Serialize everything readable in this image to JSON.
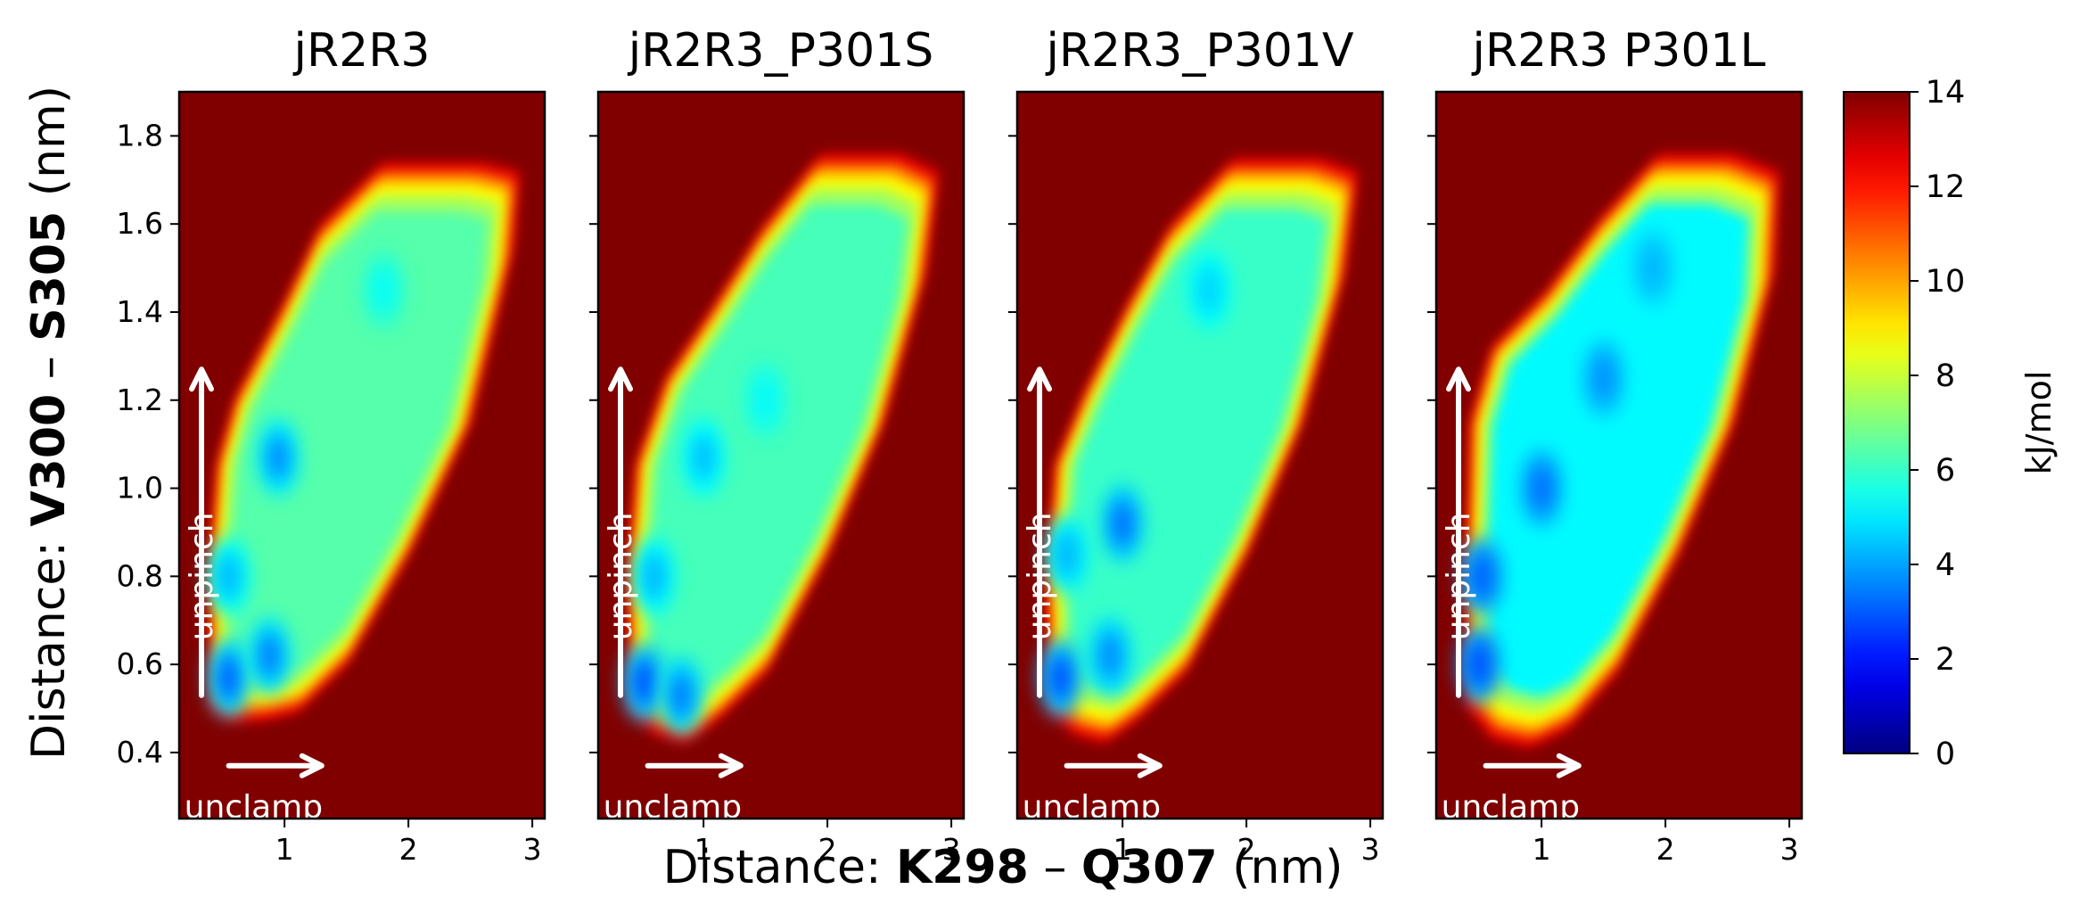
{
  "figure": {
    "xlabel_prefix": "Distance: ",
    "xlabel_res1": "K298",
    "xlabel_sep": " – ",
    "xlabel_res2": "Q307",
    "xlabel_suffix": " (nm)",
    "ylabel_prefix": "Distance: ",
    "ylabel_res1": "V300",
    "ylabel_sep": " – ",
    "ylabel_res2": "S305",
    "ylabel_suffix": " (nm)",
    "colorbar_label": "kJ/mol",
    "arrow_x_label": "unclamp",
    "arrow_y_label": "unpinch"
  },
  "chart_data": {
    "type": "heatmap",
    "xlim": [
      0.15,
      3.1
    ],
    "ylim": [
      0.25,
      1.9
    ],
    "x_ticks": [
      1,
      2,
      3
    ],
    "y_ticks": [
      0.4,
      0.6,
      0.8,
      1.0,
      1.2,
      1.4,
      1.6,
      1.8
    ],
    "y_tick_labels": [
      "0.4",
      "0.6",
      "0.8",
      "1.0",
      "1.2",
      "1.4",
      "1.6",
      "1.8"
    ],
    "colorbar": {
      "min": 0,
      "max": 14,
      "ticks": [
        0,
        2,
        4,
        6,
        8,
        10,
        12,
        14
      ],
      "colormap": "jet"
    },
    "max_color": "#800000",
    "panels": [
      {
        "title": "jR2R3",
        "boundary": [
          [
            0.4,
            0.5
          ],
          [
            0.55,
            0.47
          ],
          [
            0.8,
            0.47
          ],
          [
            1.1,
            0.49
          ],
          [
            1.5,
            0.6
          ],
          [
            2.0,
            0.85
          ],
          [
            2.5,
            1.15
          ],
          [
            2.85,
            1.55
          ],
          [
            2.9,
            1.72
          ],
          [
            2.6,
            1.74
          ],
          [
            1.8,
            1.74
          ],
          [
            1.3,
            1.6
          ],
          [
            1.0,
            1.42
          ],
          [
            0.6,
            1.2
          ],
          [
            0.45,
            1.05
          ],
          [
            0.38,
            0.8
          ]
        ],
        "base_energy": 6.4,
        "minima": [
          [
            0.55,
            0.57,
            3.0
          ],
          [
            0.88,
            0.62,
            3.4
          ],
          [
            0.95,
            1.07,
            3.6
          ],
          [
            0.55,
            0.8,
            4.2
          ],
          [
            1.8,
            1.45,
            5.3
          ]
        ]
      },
      {
        "title": "jR2R3_P301S",
        "boundary": [
          [
            0.4,
            0.5
          ],
          [
            0.6,
            0.44
          ],
          [
            0.85,
            0.42
          ],
          [
            1.1,
            0.47
          ],
          [
            1.5,
            0.58
          ],
          [
            2.0,
            0.85
          ],
          [
            2.45,
            1.15
          ],
          [
            2.8,
            1.5
          ],
          [
            2.9,
            1.72
          ],
          [
            2.6,
            1.76
          ],
          [
            1.95,
            1.76
          ],
          [
            1.5,
            1.6
          ],
          [
            1.1,
            1.42
          ],
          [
            0.7,
            1.25
          ],
          [
            0.45,
            1.05
          ],
          [
            0.38,
            0.8
          ]
        ],
        "base_energy": 6.2,
        "minima": [
          [
            0.52,
            0.56,
            2.8
          ],
          [
            0.82,
            0.53,
            3.4
          ],
          [
            1.0,
            1.07,
            4.3
          ],
          [
            0.6,
            0.8,
            4.2
          ],
          [
            1.5,
            1.2,
            5.2
          ]
        ]
      },
      {
        "title": "jR2R3_P301V",
        "boundary": [
          [
            0.4,
            0.5
          ],
          [
            0.6,
            0.44
          ],
          [
            0.85,
            0.42
          ],
          [
            1.1,
            0.47
          ],
          [
            1.5,
            0.58
          ],
          [
            2.0,
            0.85
          ],
          [
            2.45,
            1.15
          ],
          [
            2.8,
            1.5
          ],
          [
            2.9,
            1.72
          ],
          [
            2.6,
            1.75
          ],
          [
            1.9,
            1.75
          ],
          [
            1.4,
            1.6
          ],
          [
            1.05,
            1.42
          ],
          [
            0.7,
            1.22
          ],
          [
            0.45,
            1.05
          ],
          [
            0.38,
            0.8
          ]
        ],
        "base_energy": 6.0,
        "minima": [
          [
            0.5,
            0.57,
            2.8
          ],
          [
            0.9,
            0.62,
            3.6
          ],
          [
            1.0,
            0.92,
            3.2
          ],
          [
            0.55,
            0.85,
            4.2
          ],
          [
            1.7,
            1.45,
            4.6
          ]
        ]
      },
      {
        "title": "jR2R3 P301L",
        "boundary": [
          [
            0.4,
            0.5
          ],
          [
            0.6,
            0.43
          ],
          [
            0.9,
            0.41
          ],
          [
            1.2,
            0.45
          ],
          [
            1.6,
            0.58
          ],
          [
            2.1,
            0.85
          ],
          [
            2.55,
            1.15
          ],
          [
            2.88,
            1.5
          ],
          [
            2.92,
            1.72
          ],
          [
            2.55,
            1.76
          ],
          [
            1.95,
            1.76
          ],
          [
            1.5,
            1.62
          ],
          [
            1.05,
            1.45
          ],
          [
            0.6,
            1.32
          ],
          [
            0.42,
            1.15
          ],
          [
            0.38,
            0.8
          ]
        ],
        "base_energy": 5.2,
        "minima": [
          [
            0.5,
            0.6,
            2.8
          ],
          [
            0.52,
            0.8,
            3.0
          ],
          [
            1.0,
            1.0,
            3.2
          ],
          [
            1.5,
            1.25,
            3.7
          ],
          [
            1.9,
            1.5,
            4.2
          ]
        ]
      }
    ],
    "arrows": {
      "x_arrow": {
        "from": [
          0.55,
          0.37
        ],
        "to": [
          1.3,
          0.37
        ]
      },
      "y_arrow": {
        "from": [
          0.33,
          0.53
        ],
        "to": [
          0.33,
          1.27
        ]
      },
      "x_label_pos": [
        0.75,
        0.28
      ],
      "y_label_pos": [
        0.33,
        0.8
      ]
    }
  }
}
